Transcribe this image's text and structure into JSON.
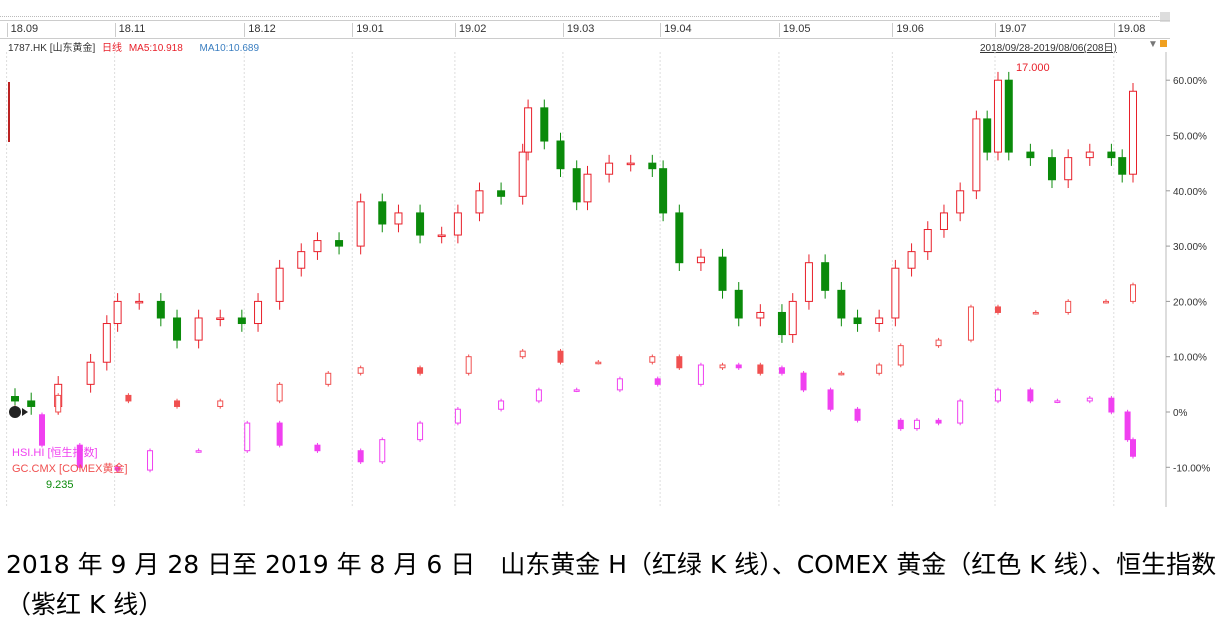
{
  "header": {
    "symbol": "1787.HK [山东黄金]",
    "period": "日线",
    "ma5": "MA5:10.918",
    "ma10": "MA10:10.689",
    "range": "2018/09/28-2019/08/06(208日)"
  },
  "legend": {
    "hsi": "HSI.HI [恒生指数]",
    "comex": "GC.CMX [COMEX黄金]"
  },
  "annotations": {
    "max": "17.000",
    "min": "9.235"
  },
  "caption": "2018 年 9 月 28 日至 2019 年 8 月 6 日　山东黄金 H（红绿 K 线）、COMEX 黄金（红色 K 线）、恒生指数（紫红 K 线）",
  "colors": {
    "up": "#e8202a",
    "down": "#0a8a0a",
    "comex": "#f05050",
    "hsi": "#f040f0",
    "ma10": "#3a7ec0"
  },
  "chart_data": {
    "type": "candlestick",
    "title": "1787.HK 山东黄金 vs COMEX黄金 vs 恒生指数",
    "x_unit": "trading day index (0 = 2018/09/28, 207 = 2019/08/06)",
    "month_ticks": [
      {
        "label": "18.09",
        "day": -1
      },
      {
        "label": "18.11",
        "day": 19
      },
      {
        "label": "18.12",
        "day": 43
      },
      {
        "label": "19.01",
        "day": 63
      },
      {
        "label": "19.02",
        "day": 82
      },
      {
        "label": "19.03",
        "day": 102
      },
      {
        "label": "19.04",
        "day": 120
      },
      {
        "label": "19.05",
        "day": 142
      },
      {
        "label": "19.06",
        "day": 163
      },
      {
        "label": "19.07",
        "day": 182
      },
      {
        "label": "19.08",
        "day": 204
      }
    ],
    "y_ticks": [
      "60.00%",
      "50.00%",
      "40.00%",
      "30.00%",
      "20.00%",
      "10.00%",
      "0%",
      "-10.00%"
    ],
    "ylim": [
      -12,
      65
    ],
    "series": [
      {
        "name": "1787.HK 山东黄金",
        "days": [
          0,
          3,
          8,
          14,
          17,
          19,
          23,
          27,
          30,
          34,
          38,
          42,
          45,
          49,
          53,
          56,
          60,
          64,
          68,
          71,
          75,
          79,
          82,
          86,
          90,
          94,
          95,
          98,
          101,
          104,
          106,
          110,
          114,
          118,
          120,
          123,
          127,
          131,
          134,
          138,
          142,
          144,
          147,
          150,
          153,
          156,
          160,
          163,
          166,
          169,
          172,
          175,
          178,
          180,
          182,
          184,
          188,
          192,
          195,
          199,
          203,
          205,
          207
        ],
        "close": [
          2,
          1,
          5,
          9,
          16,
          20,
          20,
          17,
          13,
          17,
          17,
          16,
          20,
          26,
          29,
          31,
          30,
          38,
          34,
          36,
          32,
          32,
          36,
          40,
          39,
          47,
          55,
          49,
          44,
          38,
          43,
          45,
          45,
          44,
          36,
          27,
          28,
          22,
          17,
          18,
          14,
          20,
          27,
          22,
          17,
          16,
          17,
          26,
          29,
          33,
          36,
          40,
          53,
          47,
          60,
          47,
          46,
          42,
          46,
          47,
          46,
          43,
          58
        ]
      },
      {
        "name": "GC.CMX COMEX黄金",
        "days": [
          0,
          8,
          21,
          30,
          38,
          49,
          58,
          64,
          75,
          84,
          94,
          101,
          108,
          118,
          123,
          131,
          138,
          146,
          153,
          160,
          164,
          171,
          177,
          182,
          189,
          195,
          202,
          207
        ],
        "close": [
          0,
          3,
          2,
          1,
          2,
          5,
          7,
          8,
          7,
          10,
          11,
          9,
          9,
          10,
          8,
          8.5,
          7,
          7,
          7,
          8.5,
          12,
          13,
          19,
          18,
          18,
          20,
          20,
          23
        ]
      },
      {
        "name": "HSI.HI 恒生指数",
        "days": [
          0,
          5,
          12,
          19,
          25,
          34,
          43,
          49,
          56,
          64,
          68,
          75,
          82,
          90,
          97,
          104,
          112,
          119,
          127,
          134,
          142,
          146,
          151,
          156,
          164,
          167,
          171,
          175,
          182,
          188,
          193,
          199,
          203,
          206,
          207
        ],
        "close": [
          -0.5,
          -6,
          -10,
          -10.5,
          -7,
          -7,
          -2,
          -6,
          -7,
          -9,
          -5,
          -2,
          0.5,
          2,
          4,
          4,
          6,
          5,
          8.5,
          8,
          7,
          4,
          0.5,
          -1.5,
          -3,
          -1.5,
          -2,
          2,
          4,
          2,
          2,
          2.5,
          0,
          -5,
          -8
        ]
      }
    ]
  }
}
